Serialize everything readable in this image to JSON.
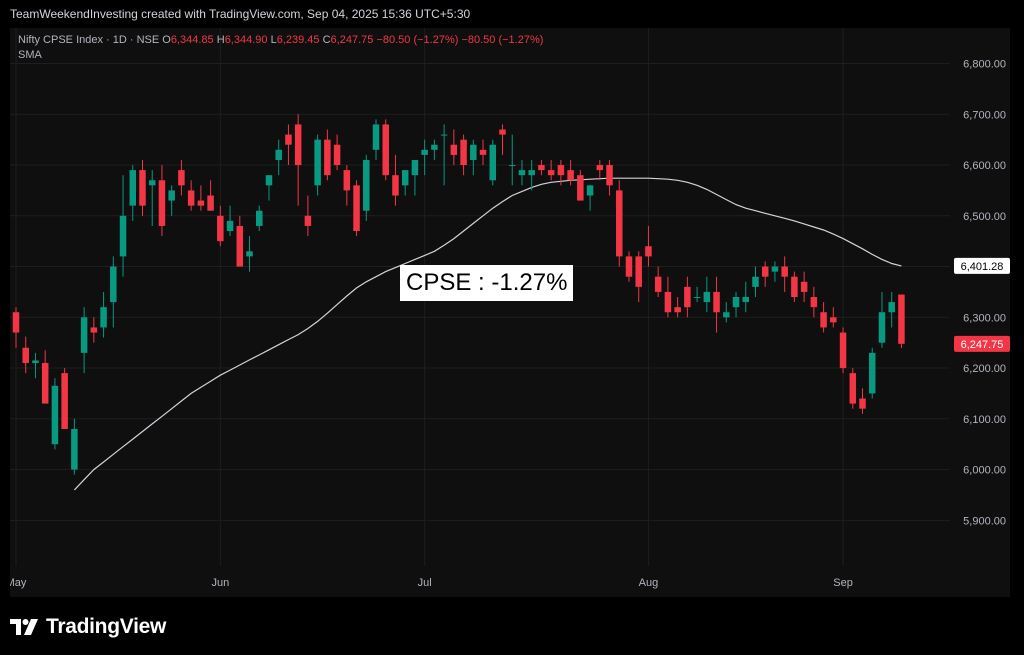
{
  "header": {
    "attribution": "TeamWeekendInvesting created with TradingView.com, Sep 04, 2025 15:36 UTC+5:30"
  },
  "legend": {
    "symbol": "Nifty CPSE Index · 1D · NSE",
    "o_label": "O",
    "o": "6,344.85",
    "h_label": "H",
    "h": "6,344.90",
    "l_label": "L",
    "l": "6,239.45",
    "c_label": "C",
    "c": "6,247.75",
    "change": "−80.50 (−1.27%)",
    "change2": "−80.50 (−1.27%)",
    "indicator": "SMA"
  },
  "annotation": "CPSE : -1.27%",
  "footer": {
    "brand": "TradingView"
  },
  "colors": {
    "up": "#089981",
    "down": "#f23645",
    "sma": "#d1d4dc",
    "background": "#0f0f0f",
    "grid": "#1e1e1e"
  },
  "chart_data": {
    "type": "candlestick",
    "y_axis": {
      "ticks": [
        5900,
        6000,
        6100,
        6200,
        6300,
        6400,
        6500,
        6600,
        6700,
        6800
      ],
      "tick_labels": [
        "5,900.00",
        "6,000.00",
        "6,100.00",
        "6,200.00",
        "6,300.00",
        "6,400.00",
        "6,500.00",
        "6,600.00",
        "6,700.00",
        "6,800.00"
      ],
      "range": [
        5810,
        6870
      ]
    },
    "x_axis": {
      "month_labels": [
        {
          "label": "May",
          "index": 0
        },
        {
          "label": "Jun",
          "index": 21
        },
        {
          "label": "Jul",
          "index": 42
        },
        {
          "label": "Aug",
          "index": 65
        },
        {
          "label": "Sep",
          "index": 85
        }
      ]
    },
    "price_labels": [
      {
        "value": 6401.28,
        "text": "6,401.28",
        "series": "sma"
      },
      {
        "value": 6247.75,
        "text": "6,247.75",
        "series": "last"
      }
    ],
    "candles": [
      {
        "o": 6310,
        "h": 6320,
        "l": 6240,
        "c": 6270
      },
      {
        "o": 6240,
        "h": 6262,
        "l": 6190,
        "c": 6210
      },
      {
        "o": 6210,
        "h": 6230,
        "l": 6180,
        "c": 6215
      },
      {
        "o": 6210,
        "h": 6235,
        "l": 6140,
        "c": 6130
      },
      {
        "o": 6050,
        "h": 6180,
        "l": 6040,
        "c": 6165
      },
      {
        "o": 6190,
        "h": 6200,
        "l": 6080,
        "c": 6080
      },
      {
        "o": 6000,
        "h": 6100,
        "l": 5990,
        "c": 6080
      },
      {
        "o": 6230,
        "h": 6320,
        "l": 6190,
        "c": 6300
      },
      {
        "o": 6280,
        "h": 6300,
        "l": 6250,
        "c": 6270
      },
      {
        "o": 6280,
        "h": 6350,
        "l": 6260,
        "c": 6320
      },
      {
        "o": 6330,
        "h": 6420,
        "l": 6280,
        "c": 6400
      },
      {
        "o": 6420,
        "h": 6580,
        "l": 6380,
        "c": 6500
      },
      {
        "o": 6520,
        "h": 6600,
        "l": 6490,
        "c": 6590
      },
      {
        "o": 6590,
        "h": 6610,
        "l": 6500,
        "c": 6520
      },
      {
        "o": 6560,
        "h": 6590,
        "l": 6480,
        "c": 6570
      },
      {
        "o": 6570,
        "h": 6600,
        "l": 6460,
        "c": 6480
      },
      {
        "o": 6530,
        "h": 6560,
        "l": 6500,
        "c": 6550
      },
      {
        "o": 6590,
        "h": 6610,
        "l": 6540,
        "c": 6560
      },
      {
        "o": 6550,
        "h": 6570,
        "l": 6510,
        "c": 6520
      },
      {
        "o": 6530,
        "h": 6560,
        "l": 6510,
        "c": 6520
      },
      {
        "o": 6540,
        "h": 6570,
        "l": 6510,
        "c": 6510
      },
      {
        "o": 6500,
        "h": 6520,
        "l": 6440,
        "c": 6450
      },
      {
        "o": 6470,
        "h": 6520,
        "l": 6460,
        "c": 6490
      },
      {
        "o": 6480,
        "h": 6500,
        "l": 6400,
        "c": 6400
      },
      {
        "o": 6420,
        "h": 6460,
        "l": 6390,
        "c": 6430
      },
      {
        "o": 6480,
        "h": 6520,
        "l": 6470,
        "c": 6510
      },
      {
        "o": 6560,
        "h": 6580,
        "l": 6530,
        "c": 6580
      },
      {
        "o": 6610,
        "h": 6650,
        "l": 6580,
        "c": 6630
      },
      {
        "o": 6660,
        "h": 6680,
        "l": 6600,
        "c": 6640
      },
      {
        "o": 6680,
        "h": 6700,
        "l": 6520,
        "c": 6600
      },
      {
        "o": 6500,
        "h": 6540,
        "l": 6460,
        "c": 6480
      },
      {
        "o": 6560,
        "h": 6660,
        "l": 6540,
        "c": 6650
      },
      {
        "o": 6650,
        "h": 6670,
        "l": 6570,
        "c": 6580
      },
      {
        "o": 6640,
        "h": 6660,
        "l": 6590,
        "c": 6600
      },
      {
        "o": 6590,
        "h": 6600,
        "l": 6520,
        "c": 6550
      },
      {
        "o": 6560,
        "h": 6570,
        "l": 6460,
        "c": 6470
      },
      {
        "o": 6510,
        "h": 6620,
        "l": 6490,
        "c": 6610
      },
      {
        "o": 6630,
        "h": 6690,
        "l": 6610,
        "c": 6680
      },
      {
        "o": 6680,
        "h": 6690,
        "l": 6570,
        "c": 6580
      },
      {
        "o": 6580,
        "h": 6620,
        "l": 6520,
        "c": 6540
      },
      {
        "o": 6560,
        "h": 6590,
        "l": 6540,
        "c": 6590
      },
      {
        "o": 6580,
        "h": 6610,
        "l": 6540,
        "c": 6610
      },
      {
        "o": 6620,
        "h": 6650,
        "l": 6580,
        "c": 6630
      },
      {
        "o": 6630,
        "h": 6650,
        "l": 6610,
        "c": 6640
      },
      {
        "o": 6660,
        "h": 6680,
        "l": 6560,
        "c": 6660
      },
      {
        "o": 6640,
        "h": 6670,
        "l": 6600,
        "c": 6620
      },
      {
        "o": 6650,
        "h": 6660,
        "l": 6580,
        "c": 6600
      },
      {
        "o": 6610,
        "h": 6650,
        "l": 6580,
        "c": 6640
      },
      {
        "o": 6630,
        "h": 6650,
        "l": 6600,
        "c": 6620
      },
      {
        "o": 6570,
        "h": 6650,
        "l": 6560,
        "c": 6640
      },
      {
        "o": 6670,
        "h": 6680,
        "l": 6620,
        "c": 6660
      },
      {
        "o": 6600,
        "h": 6660,
        "l": 6560,
        "c": 6600
      },
      {
        "o": 6580,
        "h": 6610,
        "l": 6560,
        "c": 6590
      },
      {
        "o": 6580,
        "h": 6610,
        "l": 6550,
        "c": 6590
      },
      {
        "o": 6600,
        "h": 6610,
        "l": 6580,
        "c": 6590
      },
      {
        "o": 6590,
        "h": 6610,
        "l": 6570,
        "c": 6580
      },
      {
        "o": 6600,
        "h": 6610,
        "l": 6560,
        "c": 6580
      },
      {
        "o": 6590,
        "h": 6610,
        "l": 6560,
        "c": 6570
      },
      {
        "o": 6580,
        "h": 6590,
        "l": 6530,
        "c": 6530
      },
      {
        "o": 6540,
        "h": 6560,
        "l": 6510,
        "c": 6560
      },
      {
        "o": 6600,
        "h": 6610,
        "l": 6570,
        "c": 6590
      },
      {
        "o": 6600,
        "h": 6610,
        "l": 6540,
        "c": 6560
      },
      {
        "o": 6550,
        "h": 6570,
        "l": 6400,
        "c": 6420
      },
      {
        "o": 6420,
        "h": 6430,
        "l": 6370,
        "c": 6380
      },
      {
        "o": 6420,
        "h": 6430,
        "l": 6330,
        "c": 6360
      },
      {
        "o": 6440,
        "h": 6480,
        "l": 6400,
        "c": 6420
      },
      {
        "o": 6380,
        "h": 6400,
        "l": 6340,
        "c": 6350
      },
      {
        "o": 6350,
        "h": 6380,
        "l": 6300,
        "c": 6310
      },
      {
        "o": 6320,
        "h": 6340,
        "l": 6300,
        "c": 6310
      },
      {
        "o": 6360,
        "h": 6380,
        "l": 6300,
        "c": 6320
      },
      {
        "o": 6340,
        "h": 6360,
        "l": 6330,
        "c": 6340
      },
      {
        "o": 6330,
        "h": 6380,
        "l": 6310,
        "c": 6350
      },
      {
        "o": 6350,
        "h": 6380,
        "l": 6270,
        "c": 6310
      },
      {
        "o": 6300,
        "h": 6330,
        "l": 6290,
        "c": 6310
      },
      {
        "o": 6320,
        "h": 6350,
        "l": 6300,
        "c": 6340
      },
      {
        "o": 6330,
        "h": 6370,
        "l": 6310,
        "c": 6340
      },
      {
        "o": 6360,
        "h": 6400,
        "l": 6340,
        "c": 6380
      },
      {
        "o": 6400,
        "h": 6410,
        "l": 6360,
        "c": 6380
      },
      {
        "o": 6390,
        "h": 6410,
        "l": 6370,
        "c": 6400
      },
      {
        "o": 6400,
        "h": 6420,
        "l": 6350,
        "c": 6380
      },
      {
        "o": 6380,
        "h": 6390,
        "l": 6330,
        "c": 6340
      },
      {
        "o": 6370,
        "h": 6390,
        "l": 6330,
        "c": 6350
      },
      {
        "o": 6340,
        "h": 6360,
        "l": 6300,
        "c": 6320
      },
      {
        "o": 6310,
        "h": 6330,
        "l": 6270,
        "c": 6280
      },
      {
        "o": 6300,
        "h": 6320,
        "l": 6280,
        "c": 6290
      },
      {
        "o": 6270,
        "h": 6280,
        "l": 6190,
        "c": 6200
      },
      {
        "o": 6190,
        "h": 6200,
        "l": 6120,
        "c": 6130
      },
      {
        "o": 6140,
        "h": 6160,
        "l": 6110,
        "c": 6120
      },
      {
        "o": 6150,
        "h": 6240,
        "l": 6140,
        "c": 6230
      },
      {
        "o": 6250,
        "h": 6350,
        "l": 6240,
        "c": 6310
      },
      {
        "o": 6310,
        "h": 6350,
        "l": 6280,
        "c": 6330
      },
      {
        "o": 6344.85,
        "h": 6344.9,
        "l": 6239.45,
        "c": 6247.75
      }
    ],
    "sma": [
      5960,
      5980,
      6000,
      6015,
      6030,
      6045,
      6060,
      6075,
      6090,
      6105,
      6120,
      6135,
      6150,
      6162,
      6174,
      6186,
      6196,
      6206,
      6216,
      6226,
      6236,
      6246,
      6256,
      6266,
      6278,
      6292,
      6308,
      6325,
      6342,
      6358,
      6370,
      6380,
      6390,
      6398,
      6406,
      6414,
      6422,
      6430,
      6442,
      6455,
      6470,
      6485,
      6500,
      6515,
      6528,
      6540,
      6548,
      6556,
      6562,
      6566,
      6568,
      6570,
      6571,
      6572,
      6573,
      6574,
      6574,
      6574,
      6574,
      6574,
      6573,
      6572,
      6570,
      6566,
      6560,
      6552,
      6542,
      6532,
      6522,
      6515,
      6510,
      6505,
      6500,
      6495,
      6490,
      6484,
      6478,
      6472,
      6464,
      6455,
      6445,
      6435,
      6424,
      6414,
      6406,
      6401.28
    ]
  }
}
